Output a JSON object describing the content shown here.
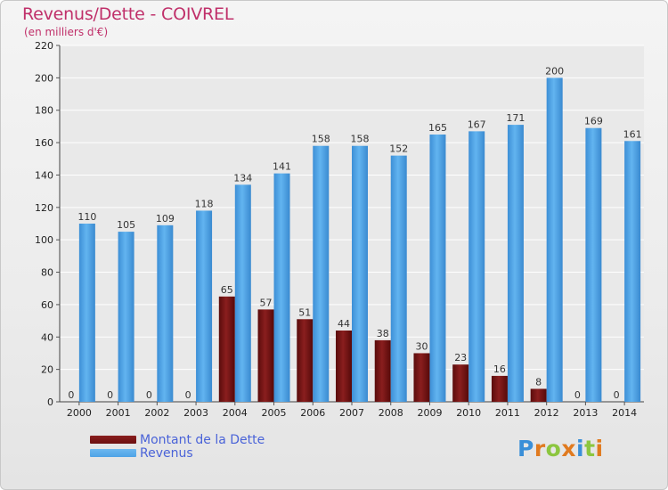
{
  "header": {
    "title": "Revenus/Dette - COIVREL",
    "subtitle": "(en milliers d'€)"
  },
  "legend": {
    "items": [
      {
        "label": "Montant de la Dette",
        "color": "#6b0f0f"
      },
      {
        "label": "Revenus",
        "color": "#4ea3e6"
      }
    ]
  },
  "logo": {
    "text": "Proxiti"
  },
  "colors": {
    "debt": "#6b0f0f",
    "revenue": "#4ea3e6",
    "grid": "#ffffff",
    "title": "#c0306a"
  },
  "chart_data": {
    "type": "bar",
    "categories": [
      "2000",
      "2001",
      "2002",
      "2003",
      "2004",
      "2005",
      "2006",
      "2007",
      "2008",
      "2009",
      "2010",
      "2011",
      "2012",
      "2013",
      "2014"
    ],
    "series": [
      {
        "name": "Montant de la Dette",
        "values": [
          0,
          0,
          0,
          0,
          65,
          57,
          51,
          44,
          38,
          30,
          23,
          16,
          8,
          0,
          0
        ]
      },
      {
        "name": "Revenus",
        "values": [
          110,
          105,
          109,
          118,
          134,
          141,
          158,
          158,
          152,
          165,
          167,
          171,
          200,
          169,
          161
        ]
      }
    ],
    "ylim": [
      0,
      220
    ],
    "yticks": [
      0,
      20,
      40,
      60,
      80,
      100,
      120,
      140,
      160,
      180,
      200,
      220
    ],
    "grid": true,
    "legend_position": "bottom-left"
  }
}
